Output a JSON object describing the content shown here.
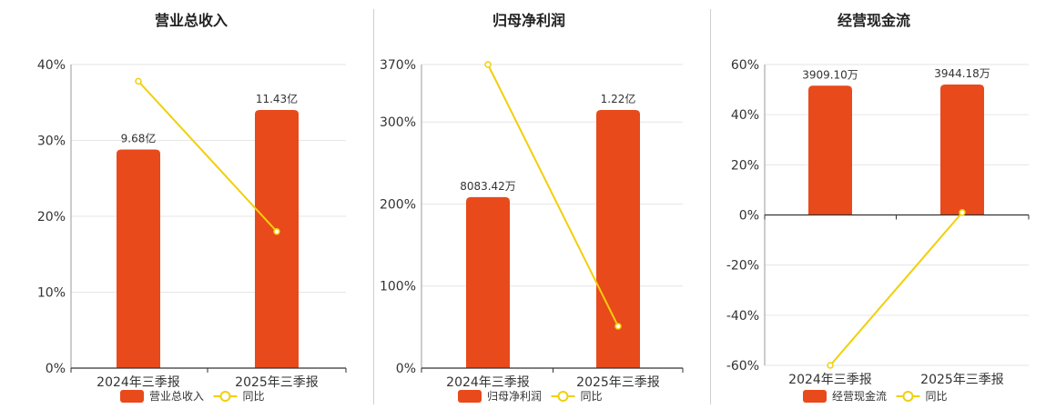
{
  "legend_line_label": "同比",
  "colors": {
    "bar": "#e84a1b",
    "line": "#f2cf0a",
    "grid": "#e6e6e6",
    "axis": "#333333"
  },
  "chart_data": [
    {
      "type": "bar",
      "title": "营业总收入",
      "categories": [
        "2024年三季报",
        "2025年三季报"
      ],
      "bar_series": {
        "name": "营业总收入",
        "values": [
          9.68,
          11.43
        ],
        "labels": [
          "9.68亿",
          "11.43亿"
        ]
      },
      "line_series": {
        "name": "同比",
        "values": [
          37.8,
          18.0
        ]
      },
      "y_axis": {
        "min": 0,
        "max": 40,
        "ticks": [
          0,
          10,
          20,
          30,
          40
        ],
        "tick_labels": [
          "0%",
          "10%",
          "20%",
          "30%",
          "40%"
        ]
      },
      "grid": true,
      "legend": "bottom"
    },
    {
      "type": "bar",
      "title": "归母净利润",
      "categories": [
        "2024年三季报",
        "2025年三季报"
      ],
      "bar_series": {
        "name": "归母净利润",
        "values": [
          0.808342,
          1.22
        ],
        "labels": [
          "8083.42万",
          "1.22亿"
        ]
      },
      "line_series": {
        "name": "同比",
        "values": [
          370,
          51
        ]
      },
      "y_axis": {
        "min": 0,
        "max": 370,
        "ticks": [
          0,
          100,
          200,
          300,
          370
        ],
        "tick_labels": [
          "0%",
          "100%",
          "200%",
          "300%",
          "370%"
        ]
      },
      "grid": true,
      "legend": "bottom"
    },
    {
      "type": "bar",
      "title": "经营现金流",
      "categories": [
        "2024年三季报",
        "2025年三季报"
      ],
      "bar_series": {
        "name": "经营现金流",
        "values": [
          3909.1,
          3944.18
        ],
        "labels": [
          "3909.10万",
          "3944.18万"
        ]
      },
      "line_series": {
        "name": "同比",
        "values": [
          -60,
          1
        ]
      },
      "y_axis": {
        "min": -60,
        "max": 60,
        "ticks": [
          -60,
          -40,
          -20,
          0,
          20,
          40,
          60
        ],
        "tick_labels": [
          "-60%",
          "-40%",
          "-20%",
          "0%",
          "20%",
          "40%",
          "60%"
        ]
      },
      "grid": true,
      "legend": "bottom"
    }
  ]
}
